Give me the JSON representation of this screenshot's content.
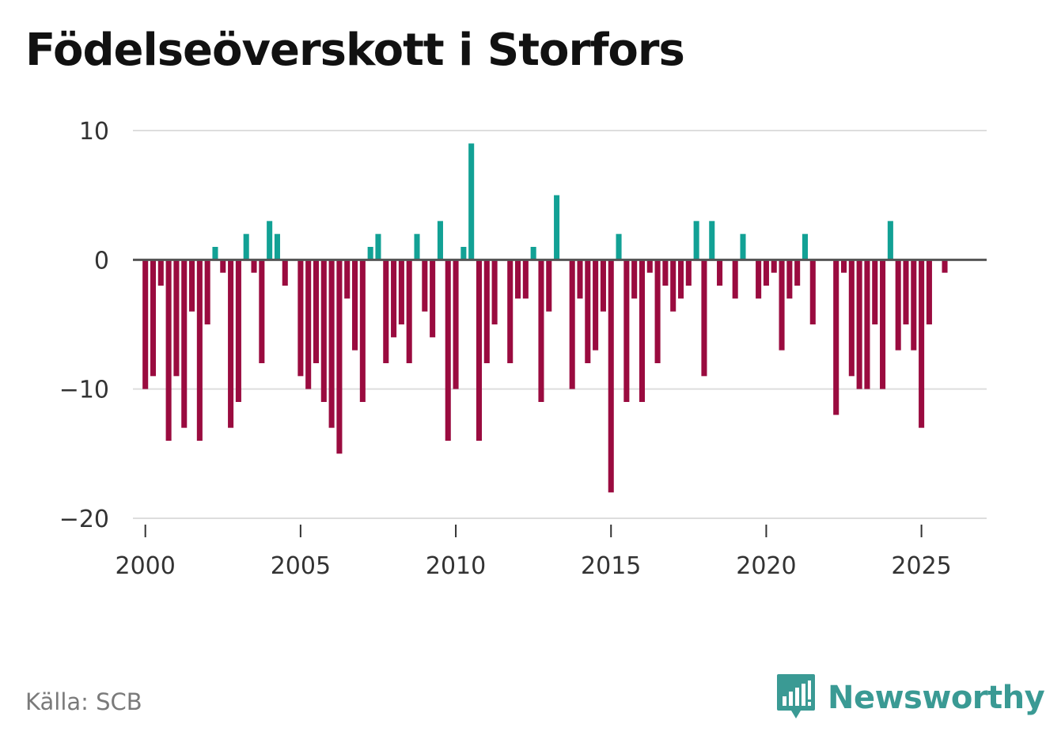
{
  "chart_data": {
    "type": "bar",
    "title": "Födelseöverskott i Storfors",
    "xlabel": "",
    "ylabel": "",
    "ylim": [
      -20,
      10
    ],
    "xlim": [
      1999.6,
      2027.1
    ],
    "yticks": [
      10,
      0,
      -10,
      -20
    ],
    "ytick_labels": [
      "10",
      "0",
      "−10",
      "−20"
    ],
    "xticks": [
      2000,
      2005,
      2010,
      2015,
      2020,
      2025
    ],
    "xtick_labels": [
      "2000",
      "2005",
      "2010",
      "2015",
      "2020",
      "2025"
    ],
    "grid": true,
    "positive_color": "#12a195",
    "negative_color": "#9a0b3f",
    "start_year": 2000,
    "points_per_year": 4,
    "series": [
      {
        "name": "Födelseöverskott",
        "values": [
          -10,
          -9,
          -2,
          -14,
          -9,
          -13,
          -4,
          -14,
          -5,
          1,
          -1,
          -13,
          -11,
          2,
          -1,
          -8,
          3,
          2,
          -2,
          0,
          -9,
          -10,
          -8,
          -11,
          -13,
          -15,
          -3,
          -7,
          -11,
          1,
          2,
          -8,
          -6,
          -5,
          -8,
          2,
          -4,
          -6,
          3,
          -14,
          -10,
          1,
          9,
          -14,
          -8,
          -5,
          0,
          -8,
          -3,
          -3,
          1,
          -11,
          -4,
          5,
          0,
          -10,
          -3,
          -8,
          -7,
          -4,
          -18,
          2,
          -11,
          -3,
          -11,
          -1,
          -8,
          -2,
          -4,
          -3,
          -2,
          3,
          -9,
          3,
          -2,
          0,
          -3,
          2,
          0,
          -3,
          -2,
          -1,
          -7,
          -3,
          -2,
          2,
          -5,
          0,
          0,
          -12,
          -1,
          -9,
          -10,
          -10,
          -5,
          -10,
          3,
          -7,
          -5,
          -7,
          -13,
          -5,
          0,
          -1
        ]
      }
    ]
  },
  "source": "Källa: SCB",
  "brand": {
    "name": "Newsworthy",
    "icon": "bar-chart-speech-bubble-icon",
    "color": "#3a9a94"
  }
}
